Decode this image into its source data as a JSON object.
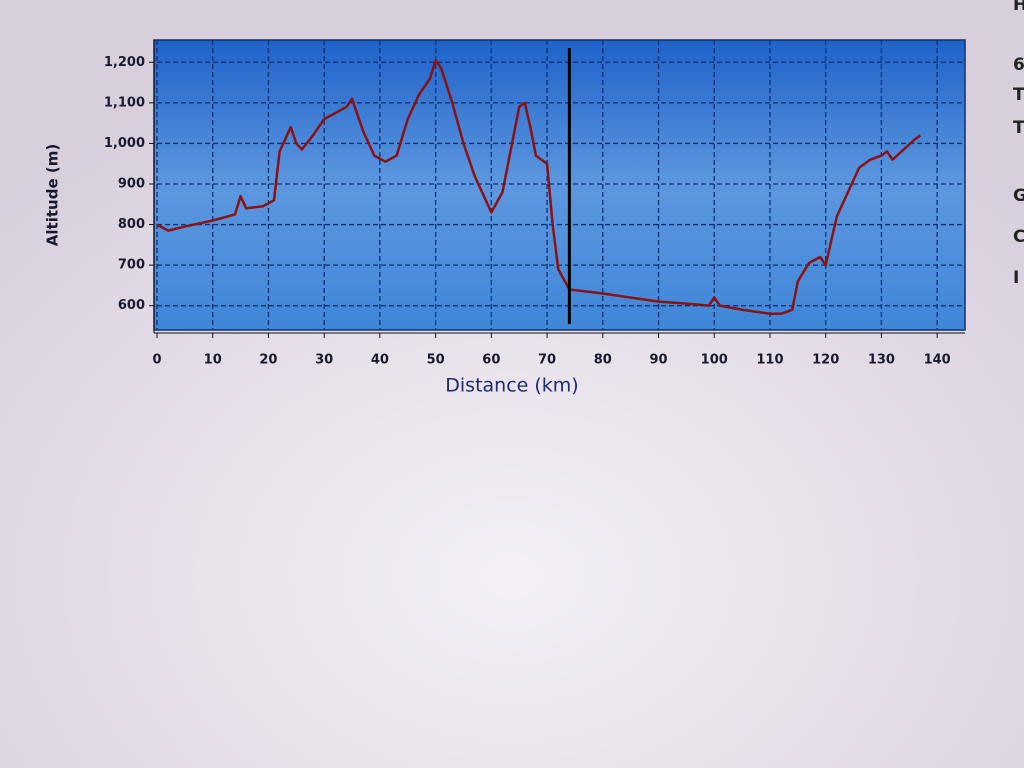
{
  "chart_data": {
    "type": "line",
    "x_label": "Distance (km)",
    "y_label": "Altitude (m)",
    "x": [
      0,
      2,
      5,
      10,
      14,
      15,
      16,
      19,
      21,
      22,
      24,
      25,
      26,
      28,
      30,
      32,
      34,
      35,
      37,
      39,
      41,
      43,
      45,
      47,
      49,
      50,
      51,
      53,
      55,
      57,
      59,
      60,
      62,
      64,
      65,
      66,
      67,
      68,
      70,
      71,
      72,
      74,
      80,
      85,
      90,
      95,
      99,
      100,
      101,
      105,
      110,
      112,
      114,
      115,
      117,
      119,
      120,
      121,
      122,
      124,
      126,
      128,
      130,
      131,
      132,
      134,
      136,
      137
    ],
    "series": [
      {
        "color": "#8b1212",
        "values": [
          800,
          785,
          795,
          810,
          825,
          870,
          840,
          845,
          860,
          980,
          1040,
          1000,
          985,
          1020,
          1060,
          1075,
          1090,
          1110,
          1030,
          970,
          955,
          970,
          1060,
          1120,
          1160,
          1205,
          1185,
          1100,
          1000,
          920,
          860,
          830,
          880,
          1020,
          1090,
          1100,
          1040,
          970,
          950,
          800,
          690,
          640,
          630,
          620,
          610,
          605,
          600,
          620,
          600,
          590,
          580,
          580,
          590,
          660,
          705,
          720,
          700,
          760,
          820,
          880,
          940,
          960,
          970,
          980,
          960,
          985,
          1010,
          1020
        ]
      }
    ],
    "xlim": [
      0,
      145
    ],
    "ylim": [
      540,
      1255
    ],
    "xticks": [
      0,
      10,
      20,
      30,
      40,
      50,
      60,
      70,
      80,
      90,
      100,
      110,
      120,
      130,
      140
    ],
    "yticks": [
      600,
      700,
      800,
      900,
      {
        "value": 1000,
        "label": "1,000"
      },
      {
        "value": 1100,
        "label": "1,100"
      },
      {
        "value": 1200,
        "label": "1,200"
      }
    ],
    "grid": true,
    "cursor_x": 74,
    "side_text": [
      "H",
      "6",
      "T",
      "T",
      "G",
      "C",
      "I"
    ]
  }
}
